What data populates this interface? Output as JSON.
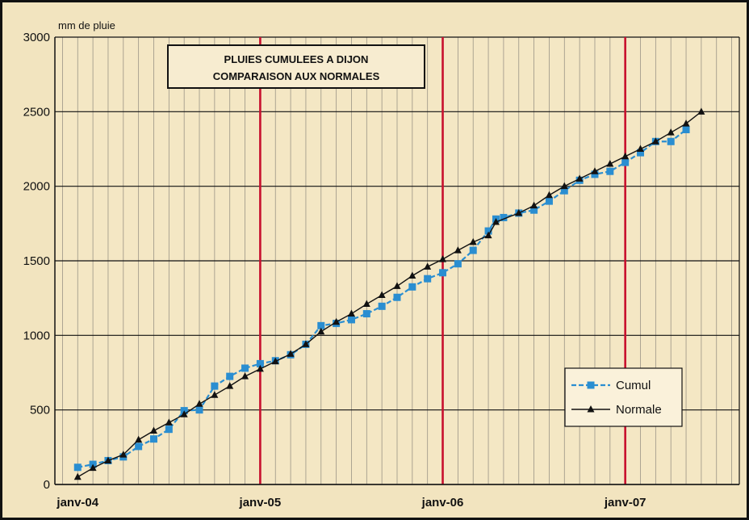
{
  "chart_data": {
    "type": "line",
    "title": "PLUIES CUMULEES A DIJON",
    "subtitle": "COMPARAISON AUX NORMALES",
    "ylabel": "mm de pluie",
    "xlabel": "",
    "ylim": [
      0,
      3000
    ],
    "yticks": [
      0,
      500,
      1000,
      1500,
      2000,
      2500,
      3000
    ],
    "x_tick_labels": [
      "janv-04",
      "janv-05",
      "janv-06",
      "janv-07"
    ],
    "x_tick_month_index": [
      0,
      12,
      24,
      36
    ],
    "x_range_months": [
      -1.5,
      43.5
    ],
    "year_markers_month_index": [
      12,
      24,
      36
    ],
    "grid": true,
    "legend_position": "bottom-right",
    "x_month_index": [
      0,
      1,
      2,
      3,
      4,
      5,
      6,
      7,
      8,
      9,
      10,
      11,
      12,
      13,
      14,
      15,
      16,
      17,
      18,
      19,
      20,
      21,
      22,
      23,
      24,
      25,
      26,
      27,
      27.5,
      28,
      29,
      30,
      31,
      32,
      33,
      34,
      35,
      36,
      37,
      38,
      39,
      40,
      41
    ],
    "series": [
      {
        "name": "Cumul",
        "color": "#2a8ed1",
        "marker": "square",
        "dash": true,
        "values": [
          115,
          135,
          160,
          185,
          255,
          305,
          370,
          495,
          500,
          660,
          725,
          780,
          810,
          830,
          870,
          940,
          1065,
          1080,
          1105,
          1145,
          1195,
          1255,
          1325,
          1380,
          1420,
          1480,
          1570,
          1700,
          1780,
          1790,
          1820,
          1840,
          1900,
          1970,
          2040,
          2080,
          2100,
          2160,
          2225,
          2300,
          2300,
          2380,
          null
        ]
      },
      {
        "name": "Normale",
        "color": "#111111",
        "marker": "triangle",
        "dash": false,
        "values": [
          50,
          110,
          160,
          200,
          300,
          360,
          415,
          470,
          540,
          600,
          660,
          725,
          775,
          825,
          875,
          940,
          1025,
          1090,
          1145,
          1210,
          1270,
          1330,
          1400,
          1460,
          1510,
          1570,
          1625,
          1670,
          1760,
          null,
          1820,
          1870,
          1940,
          2000,
          2050,
          2100,
          2150,
          2200,
          2250,
          2300,
          2360,
          2420,
          2500
        ]
      }
    ]
  }
}
